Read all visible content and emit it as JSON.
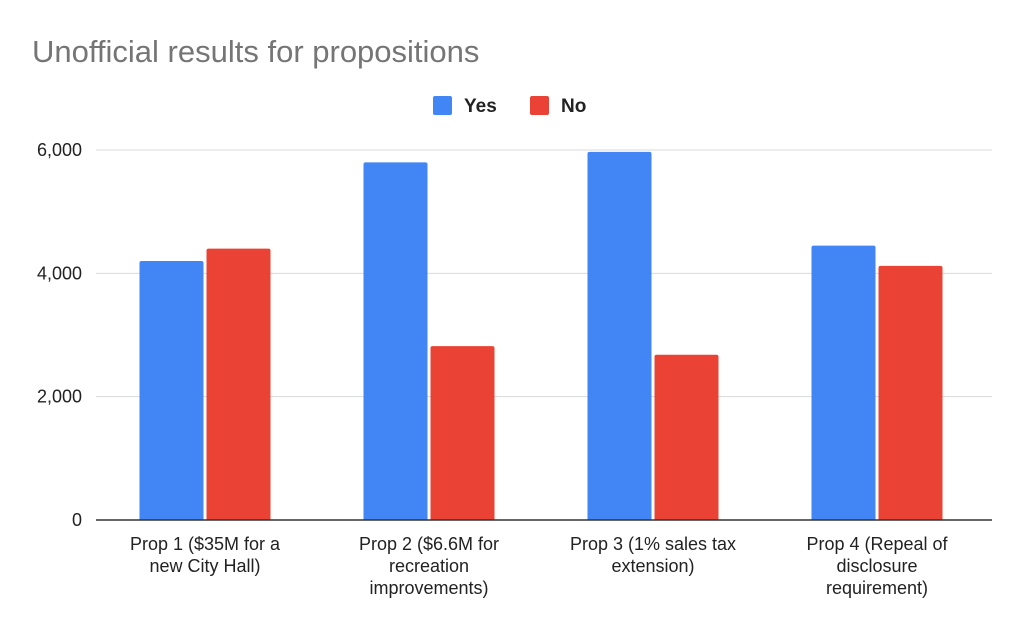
{
  "chart_data": {
    "type": "bar",
    "title": "Unofficial results for propositions",
    "xlabel": "",
    "ylabel": "",
    "categories": [
      [
        "Prop 1 ($35M for a",
        "new City Hall)"
      ],
      [
        "Prop 2 ($6.6M for",
        "recreation",
        "improvements)"
      ],
      [
        "Prop 3 (1% sales tax",
        "extension)"
      ],
      [
        "Prop 4 (Repeal of",
        "disclosure",
        "requirement)"
      ]
    ],
    "series": [
      {
        "name": "Yes",
        "color": "#4285f4",
        "values": [
          4200,
          5800,
          5970,
          4450
        ]
      },
      {
        "name": "No",
        "color": "#ea4335",
        "values": [
          4400,
          2820,
          2680,
          4120
        ]
      }
    ],
    "ylim": [
      0,
      6000
    ],
    "yticks": [
      0,
      2000,
      4000,
      6000
    ],
    "ytick_labels": [
      "0",
      "2,000",
      "4,000",
      "6,000"
    ],
    "grid": true,
    "legend_position": "top-center"
  }
}
